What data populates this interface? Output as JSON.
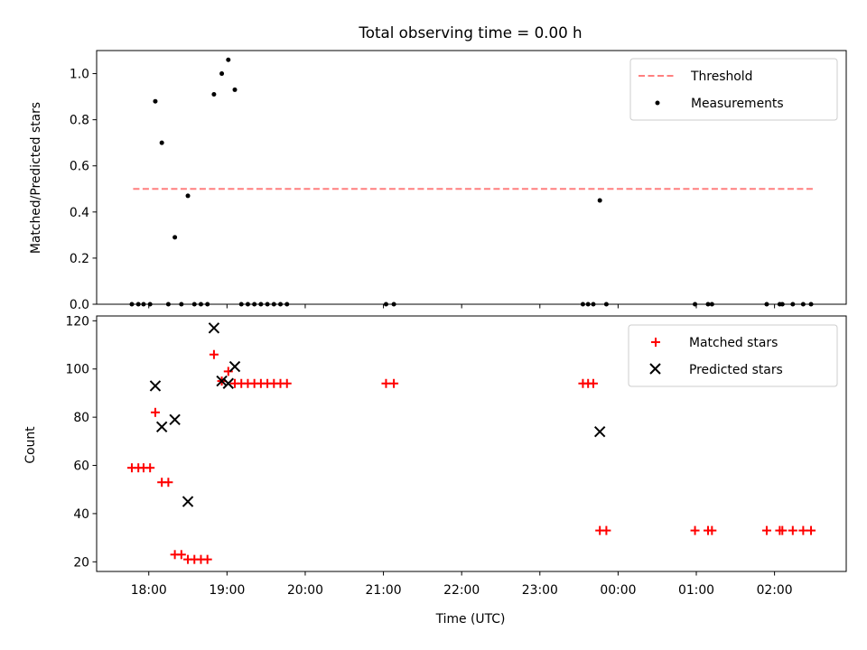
{
  "chart_data": [
    {
      "type": "scatter",
      "title": "Total observing time = 0.00 h",
      "ylabel": "Matched/Predicted stars",
      "xlabel": "",
      "ylim": [
        0,
        1.1
      ],
      "yticks": [
        "0.0",
        "0.2",
        "0.4",
        "0.6",
        "0.8",
        "1.0"
      ],
      "grid": false,
      "legend_position": "top-right",
      "threshold": {
        "name": "Threshold",
        "value": 0.5,
        "from": "17:48",
        "to": "02:30",
        "color": "#ff7f7f",
        "style": "dashed"
      },
      "series": [
        {
          "name": "Measurements",
          "color": "#000000",
          "marker": "dot",
          "points": [
            [
              "17:47",
              0
            ],
            [
              "17:52",
              0
            ],
            [
              "17:56",
              0
            ],
            [
              "18:01",
              0
            ],
            [
              "18:05",
              0.88
            ],
            [
              "18:10",
              0.7
            ],
            [
              "18:15",
              0
            ],
            [
              "18:20",
              0.29
            ],
            [
              "18:25",
              0
            ],
            [
              "18:30",
              0.47
            ],
            [
              "18:35",
              0
            ],
            [
              "18:40",
              0
            ],
            [
              "18:45",
              0
            ],
            [
              "18:50",
              0.91
            ],
            [
              "18:56",
              1.0
            ],
            [
              "19:01",
              1.06
            ],
            [
              "19:06",
              0.93
            ],
            [
              "19:11",
              0
            ],
            [
              "19:16",
              0
            ],
            [
              "19:21",
              0
            ],
            [
              "19:26",
              0
            ],
            [
              "19:31",
              0
            ],
            [
              "19:36",
              0
            ],
            [
              "19:41",
              0
            ],
            [
              "19:46",
              0
            ],
            [
              "21:02",
              0
            ],
            [
              "21:08",
              0
            ],
            [
              "23:33",
              0
            ],
            [
              "23:37",
              0
            ],
            [
              "23:41",
              0
            ],
            [
              "23:46",
              0.45
            ],
            [
              "23:51",
              0
            ],
            [
              "00:59",
              0
            ],
            [
              "01:09",
              0
            ],
            [
              "01:12",
              0
            ],
            [
              "01:54",
              0
            ],
            [
              "02:04",
              0
            ],
            [
              "02:06",
              0
            ],
            [
              "02:14",
              0
            ],
            [
              "02:22",
              0
            ],
            [
              "02:28",
              0
            ]
          ]
        }
      ]
    },
    {
      "type": "scatter",
      "xlabel": "Time (UTC)",
      "ylabel": "Count",
      "ylim": [
        16,
        122
      ],
      "yticks": [
        "20",
        "40",
        "60",
        "80",
        "100",
        "120"
      ],
      "xticks": [
        "18:00",
        "19:00",
        "20:00",
        "21:00",
        "22:00",
        "23:00",
        "00:00",
        "01:00",
        "02:00"
      ],
      "grid": false,
      "legend_position": "top-right",
      "series": [
        {
          "name": "Matched stars",
          "color": "#ff0000",
          "marker": "plus",
          "points": [
            [
              "17:47",
              59
            ],
            [
              "17:52",
              59
            ],
            [
              "17:56",
              59
            ],
            [
              "18:01",
              59
            ],
            [
              "18:05",
              82
            ],
            [
              "18:10",
              53
            ],
            [
              "18:15",
              53
            ],
            [
              "18:20",
              23
            ],
            [
              "18:25",
              23
            ],
            [
              "18:30",
              21
            ],
            [
              "18:35",
              21
            ],
            [
              "18:40",
              21
            ],
            [
              "18:45",
              21
            ],
            [
              "18:50",
              106
            ],
            [
              "18:56",
              95
            ],
            [
              "19:01",
              99
            ],
            [
              "19:06",
              94
            ],
            [
              "19:11",
              94
            ],
            [
              "19:16",
              94
            ],
            [
              "19:21",
              94
            ],
            [
              "19:26",
              94
            ],
            [
              "19:31",
              94
            ],
            [
              "19:36",
              94
            ],
            [
              "19:41",
              94
            ],
            [
              "19:46",
              94
            ],
            [
              "21:02",
              94
            ],
            [
              "21:08",
              94
            ],
            [
              "23:33",
              94
            ],
            [
              "23:37",
              94
            ],
            [
              "23:41",
              94
            ],
            [
              "23:46",
              33
            ],
            [
              "23:51",
              33
            ],
            [
              "00:59",
              33
            ],
            [
              "01:09",
              33
            ],
            [
              "01:12",
              33
            ],
            [
              "01:54",
              33
            ],
            [
              "02:04",
              33
            ],
            [
              "02:06",
              33
            ],
            [
              "02:14",
              33
            ],
            [
              "02:22",
              33
            ],
            [
              "02:28",
              33
            ]
          ]
        },
        {
          "name": "Predicted stars",
          "color": "#000000",
          "marker": "x",
          "points": [
            [
              "18:05",
              93
            ],
            [
              "18:10",
              76
            ],
            [
              "18:20",
              79
            ],
            [
              "18:30",
              45
            ],
            [
              "18:50",
              117
            ],
            [
              "18:56",
              95
            ],
            [
              "19:01",
              94
            ],
            [
              "19:06",
              101
            ],
            [
              "23:46",
              74
            ]
          ]
        }
      ]
    }
  ]
}
